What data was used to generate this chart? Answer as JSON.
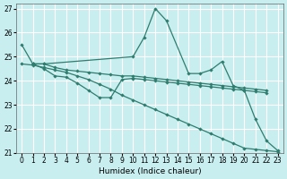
{
  "xlabel": "Humidex (Indice chaleur)",
  "bg_color": "#c8eef0",
  "grid_color": "#ffffff",
  "line_color": "#2e7d6e",
  "xlim": [
    -0.5,
    23.5
  ],
  "ylim": [
    21,
    27.2
  ],
  "yticks": [
    21,
    22,
    23,
    24,
    25,
    26,
    27
  ],
  "xticks": [
    0,
    1,
    2,
    3,
    4,
    5,
    6,
    7,
    8,
    9,
    10,
    11,
    12,
    13,
    14,
    15,
    16,
    17,
    18,
    19,
    20,
    21,
    22,
    23
  ],
  "s1x": [
    0,
    1,
    2,
    10,
    11,
    12,
    13,
    15,
    16,
    17,
    18,
    19,
    20,
    21,
    22,
    23
  ],
  "s1y": [
    25.5,
    24.7,
    24.7,
    25.0,
    25.8,
    27.0,
    26.5,
    24.3,
    24.3,
    24.45,
    24.8,
    23.8,
    23.6,
    22.4,
    21.5,
    21.1
  ],
  "s2x": [
    1,
    2,
    3,
    4,
    5,
    6,
    7,
    8,
    9,
    10,
    11,
    12,
    13,
    14,
    15,
    16,
    17,
    18,
    19,
    20,
    21,
    22
  ],
  "s2y": [
    24.7,
    24.7,
    24.55,
    24.45,
    24.4,
    24.35,
    24.3,
    24.25,
    24.2,
    24.2,
    24.15,
    24.1,
    24.05,
    24.0,
    23.95,
    23.9,
    23.85,
    23.8,
    23.75,
    23.7,
    23.65,
    23.6
  ],
  "s3x": [
    1,
    2,
    3,
    4,
    5,
    6,
    7,
    8,
    9,
    10,
    11,
    12,
    13,
    14,
    15,
    16,
    17,
    18,
    19,
    20,
    21,
    22
  ],
  "s3y": [
    24.7,
    24.5,
    24.2,
    24.15,
    23.9,
    23.6,
    23.3,
    23.3,
    24.05,
    24.1,
    24.05,
    24.0,
    23.95,
    23.9,
    23.85,
    23.8,
    23.75,
    23.7,
    23.65,
    23.6,
    23.55,
    23.5
  ],
  "s4x": [
    0,
    1,
    2,
    3,
    4,
    5,
    6,
    7,
    8,
    9,
    10,
    11,
    12,
    13,
    14,
    15,
    16,
    17,
    18,
    19,
    20,
    21,
    22,
    23
  ],
  "s4y": [
    24.7,
    24.65,
    24.55,
    24.45,
    24.35,
    24.2,
    24.05,
    23.85,
    23.65,
    23.4,
    23.2,
    23.0,
    22.8,
    22.6,
    22.4,
    22.2,
    22.0,
    21.8,
    21.6,
    21.4,
    21.2,
    21.15,
    21.1,
    21.05
  ]
}
